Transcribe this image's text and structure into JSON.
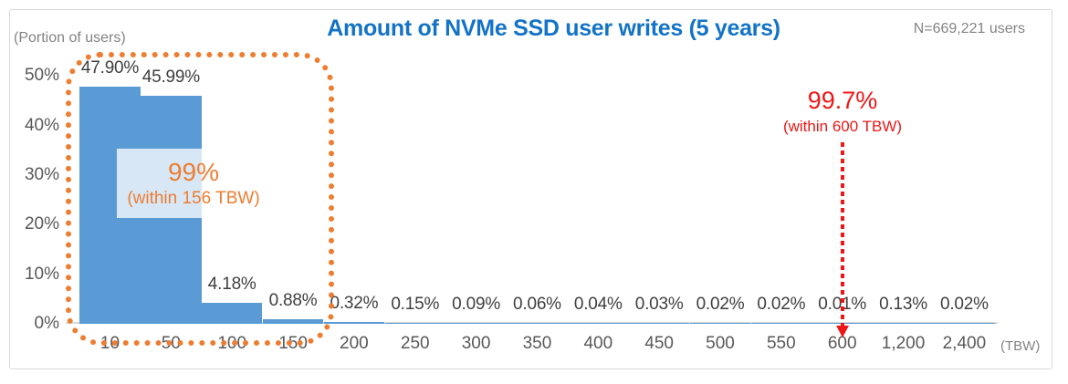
{
  "chart_data": {
    "type": "bar",
    "title": "Amount of NVMe SSD user writes (5 years)",
    "sample_label": "N=669,221 users",
    "ylabel": "(Portion of users)",
    "x_unit": "(TBW)",
    "categories": [
      "10",
      "50",
      "100",
      "150",
      "200",
      "250",
      "300",
      "350",
      "400",
      "450",
      "500",
      "550",
      "600",
      "1,200",
      "2,400"
    ],
    "values": [
      47.9,
      45.99,
      4.18,
      0.88,
      0.32,
      0.15,
      0.09,
      0.06,
      0.04,
      0.03,
      0.02,
      0.02,
      0.01,
      0.13,
      0.02
    ],
    "value_labels": [
      "47.90%",
      "45.99%",
      "4.18%",
      "0.88%",
      "0.32%",
      "0.15%",
      "0.09%",
      "0.06%",
      "0.04%",
      "0.03%",
      "0.02%",
      "0.02%",
      "0.01%",
      "0.13%",
      "0.02%"
    ],
    "yticks": [
      "0%",
      "10%",
      "20%",
      "30%",
      "40%",
      "50%"
    ],
    "ytick_values": [
      0,
      10,
      20,
      30,
      40,
      50
    ],
    "ylim": [
      0,
      50
    ],
    "grid": "off",
    "legend": "none",
    "annotations": {
      "orange_box": {
        "line1": "99%",
        "line2": "(within 156 TBW)"
      },
      "red_marker": {
        "line1": "99.7%",
        "line2": "(within 600 TBW)",
        "target_category": "600"
      }
    },
    "colors": {
      "bar": "#5b9bd5",
      "orange": "#ed7d31",
      "red": "#ee1717",
      "title": "#1473c6",
      "axis_text": "#595959",
      "muted_text": "#838383",
      "value_text": "#3f3f3f",
      "axis_line": "#d9d9d9",
      "frame_border": "#d9d9d9",
      "overlay_bg": "rgba(255,255,255,0.76)"
    }
  }
}
